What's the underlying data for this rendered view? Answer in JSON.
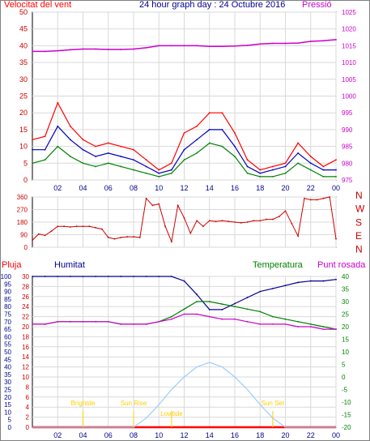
{
  "header": {
    "left_label": "Velocitat del vent",
    "title": "24 hour graph day : 24 Octubre 2016",
    "right_label": "Pressió"
  },
  "colors": {
    "wind_gust": "#ff0000",
    "wind_avg": "#0000c0",
    "wind_low": "#008000",
    "pressure": "#cc00cc",
    "direction": "#cc0000",
    "humidity": "#000090",
    "temperature": "#008000",
    "dewpoint": "#cc00cc",
    "rain": "#ff0000",
    "sun": "#99ccff",
    "markers": "#ffcc00",
    "grid": "#d9d9d9"
  },
  "x_ticks": [
    "02",
    "04",
    "06",
    "08",
    "10",
    "12",
    "14",
    "16",
    "18",
    "20",
    "22",
    "00"
  ],
  "chart_data": [
    {
      "type": "line",
      "name": "wind-and-pressure",
      "left_axis": {
        "label": "Velocitat del vent",
        "range": [
          0,
          50
        ],
        "ticks": [
          0,
          5,
          10,
          15,
          20,
          25,
          30,
          35,
          40,
          45,
          50
        ]
      },
      "right_axis": {
        "label": "Pressió",
        "range": [
          975,
          1025
        ],
        "ticks": [
          975,
          980,
          985,
          990,
          995,
          1000,
          1005,
          1010,
          1015,
          1020,
          1025
        ]
      },
      "x_hours": [
        0,
        1,
        2,
        3,
        4,
        5,
        6,
        7,
        8,
        9,
        10,
        11,
        12,
        13,
        14,
        15,
        16,
        17,
        18,
        19,
        20,
        21,
        22,
        23,
        24
      ],
      "series": [
        {
          "key": "gust",
          "axis": "left",
          "values": [
            12,
            13,
            23,
            16,
            12,
            10,
            11,
            10,
            9,
            6,
            3,
            5,
            14,
            16,
            20,
            20,
            14,
            6,
            3,
            4,
            5,
            11,
            7,
            4,
            6
          ]
        },
        {
          "key": "average",
          "axis": "left",
          "values": [
            9,
            9,
            16,
            12,
            9,
            7,
            8,
            7,
            6,
            4,
            2,
            3,
            9,
            12,
            15,
            15,
            10,
            4,
            2,
            3,
            4,
            8,
            5,
            3,
            3
          ]
        },
        {
          "key": "low",
          "axis": "left",
          "values": [
            5,
            6,
            10,
            7,
            5,
            4,
            5,
            4,
            3,
            2,
            1,
            2,
            6,
            8,
            11,
            10,
            7,
            2,
            1,
            1,
            2,
            5,
            3,
            1,
            1
          ]
        },
        {
          "key": "pressure",
          "axis": "right",
          "values": [
            1013.3,
            1013.3,
            1013.5,
            1013.8,
            1014.0,
            1014.0,
            1013.9,
            1013.9,
            1014.0,
            1014.4,
            1015.0,
            1015.0,
            1015.0,
            1015.0,
            1014.8,
            1014.8,
            1014.9,
            1015.1,
            1015.5,
            1015.7,
            1015.7,
            1015.8,
            1016.3,
            1016.5,
            1016.8
          ]
        }
      ]
    },
    {
      "type": "line",
      "name": "wind-direction",
      "left_axis": {
        "range": [
          0,
          360
        ],
        "ticks": [
          0,
          90,
          180,
          270,
          360
        ]
      },
      "right_labels": [
        "N",
        "W",
        "S",
        "E",
        "N"
      ],
      "x_hours": [
        0,
        0.5,
        1,
        1.5,
        2,
        2.5,
        3,
        3.5,
        4,
        4.5,
        5,
        5.5,
        6,
        6.5,
        7,
        7.5,
        8,
        8.5,
        9,
        9.5,
        10,
        10.5,
        11,
        11.5,
        12,
        12.5,
        13,
        13.5,
        14,
        14.5,
        15,
        15.5,
        16,
        16.5,
        17,
        17.5,
        18,
        18.5,
        19,
        19.5,
        20,
        20.5,
        21,
        21.5,
        22,
        22.5,
        23,
        23.5,
        24
      ],
      "values": [
        50,
        95,
        85,
        115,
        150,
        150,
        145,
        150,
        150,
        150,
        140,
        130,
        70,
        60,
        70,
        75,
        75,
        70,
        350,
        300,
        310,
        150,
        40,
        300,
        210,
        100,
        190,
        150,
        190,
        185,
        190,
        185,
        180,
        175,
        180,
        190,
        190,
        200,
        200,
        220,
        260,
        170,
        80,
        350,
        340,
        340,
        350,
        360,
        60
      ]
    },
    {
      "type": "line",
      "name": "humidity-temperature",
      "left_axis": {
        "label": "Humitat",
        "range": [
          0,
          100
        ],
        "ticks": [
          0,
          5,
          10,
          15,
          20,
          25,
          30,
          35,
          40,
          45,
          50,
          55,
          60,
          65,
          70,
          75,
          80,
          85,
          90,
          95,
          100
        ]
      },
      "rain_axis": {
        "label": "Pluja",
        "range": [
          0,
          30
        ],
        "ticks": [
          0,
          2,
          4,
          6,
          8,
          10,
          12,
          14,
          16,
          18,
          20,
          22,
          24,
          26,
          28,
          30
        ]
      },
      "right_axis": {
        "label": "Temperatura",
        "range": [
          -20,
          40
        ],
        "ticks": [
          -20,
          -15,
          -10,
          -5,
          0,
          5,
          10,
          15,
          20,
          25,
          30,
          35,
          40
        ]
      },
      "x_hours": [
        0,
        1,
        2,
        3,
        4,
        5,
        6,
        7,
        8,
        9,
        10,
        11,
        12,
        13,
        14,
        15,
        16,
        17,
        18,
        19,
        20,
        21,
        22,
        23,
        24
      ],
      "series": [
        {
          "key": "humidity",
          "name": "Humitat",
          "axis": "left",
          "values": [
            100,
            100,
            100,
            100,
            100,
            100,
            100,
            100,
            100,
            100,
            100,
            100,
            97,
            88,
            78,
            78,
            82,
            86,
            90,
            92,
            94,
            96,
            97,
            97,
            98
          ]
        },
        {
          "key": "temperature",
          "name": "Temperatura",
          "axis": "right",
          "values": [
            21,
            21,
            22,
            22,
            22,
            22,
            22,
            21,
            21,
            21,
            22,
            24,
            27,
            30,
            30,
            29,
            28,
            27,
            26,
            24,
            23,
            22,
            21,
            20,
            19
          ]
        },
        {
          "key": "dewpoint",
          "name": "Punt rosada",
          "axis": "right",
          "values": [
            21,
            21,
            22,
            22,
            22,
            22,
            22,
            21,
            21,
            21,
            22,
            23,
            25,
            25,
            24,
            23,
            23,
            22,
            21,
            21,
            21,
            20,
            20,
            19,
            19
          ]
        },
        {
          "key": "rain",
          "name": "Pluja",
          "axis": "rain",
          "values": [
            0,
            0,
            0,
            0,
            0,
            0,
            0,
            0,
            0,
            0,
            0,
            0,
            0,
            0,
            0,
            0,
            0,
            0,
            0,
            0,
            0,
            0,
            0,
            0,
            0
          ]
        },
        {
          "key": "sun",
          "axis": "rain",
          "values": [
            0,
            0,
            0,
            0,
            0,
            0,
            0,
            0,
            0,
            1.8,
            4.5,
            7.5,
            10,
            12,
            12.9,
            12,
            10,
            7.5,
            4.5,
            1.8,
            0,
            0,
            0,
            0,
            0
          ]
        }
      ],
      "legend": {
        "rain": "Pluja",
        "humidity": "Humitat",
        "temperature": "Temperatura",
        "dewpoint": "Punt rosada"
      },
      "markers": [
        {
          "label": "Brightde",
          "hour": 4
        },
        {
          "label": "Sun Rise",
          "hour": 8
        },
        {
          "label": "Lowtide",
          "hour": 11
        },
        {
          "label": "Sun Set",
          "hour": 19
        }
      ]
    }
  ]
}
